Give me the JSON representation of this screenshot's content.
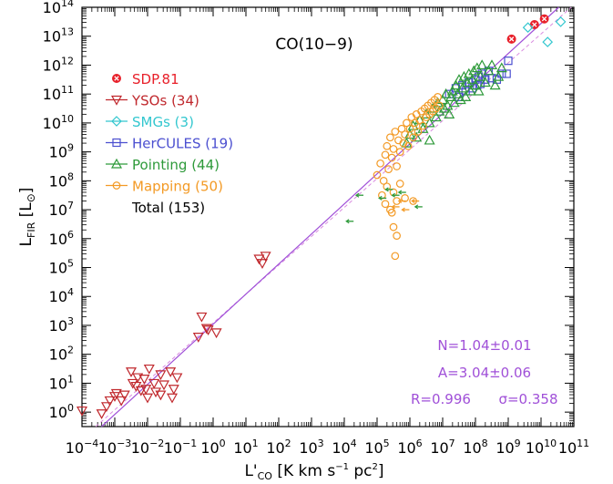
{
  "chart_data": {
    "type": "scatter",
    "title": "CO(10−9)",
    "xlabel": "L'",
    "xlabel_sub": "CO",
    "xlabel_units": "[K km s",
    "xlabel_units_sup": "−1",
    "xlabel_units_tail": " pc",
    "xlabel_units_sup2": "2",
    "xlabel_units_end": "]",
    "ylabel": "L",
    "ylabel_sub": "FIR",
    "ylabel_units": "[L",
    "ylabel_units_sym": "⊙",
    "ylabel_units_end": "]",
    "xscale": "log",
    "yscale": "log",
    "xlim": [
      -4,
      11
    ],
    "ylim": [
      -0.5,
      14
    ],
    "x_tick_exponents": [
      -4,
      -3,
      -2,
      -1,
      0,
      1,
      2,
      3,
      4,
      5,
      6,
      7,
      8,
      9,
      10,
      11
    ],
    "y_tick_exponents": [
      0,
      1,
      2,
      3,
      4,
      5,
      6,
      7,
      8,
      9,
      10,
      11,
      12,
      13,
      14
    ],
    "tick_base": "10",
    "legend_placement": "upper-left",
    "legend": [
      {
        "label": "SDP.81",
        "color": "#e8202a",
        "marker": "circled-x"
      },
      {
        "label": "YSOs (34)",
        "color": "#c0282d",
        "marker": "triangle-down"
      },
      {
        "label": "SMGs (3)",
        "color": "#33c7cf",
        "marker": "diamond"
      },
      {
        "label": "HerCULES (19)",
        "color": "#4b4fd0",
        "marker": "square"
      },
      {
        "label": "Pointing (44)",
        "color": "#2e9a3a",
        "marker": "triangle-up"
      },
      {
        "label": "Mapping (50)",
        "color": "#f39a25",
        "marker": "circle"
      }
    ],
    "total_label": "Total (153)",
    "fit": {
      "slope": 1.04,
      "intercept": 3.04,
      "color": "#a050d8"
    },
    "fit_dashed": {
      "slope": 1.0,
      "intercept": 3.08,
      "color": "#d98be0"
    },
    "stats": {
      "n_label": "N=1.04±0.01",
      "a_label": "A=3.04±0.06",
      "r_label": "R=0.996",
      "sigma_label": "σ=0.358",
      "color": "#a050d8"
    },
    "series": [
      {
        "name": "SDP.81",
        "color": "#e8202a",
        "marker": "circled-x",
        "points": [
          [
            9.1,
            12.9
          ],
          [
            9.8,
            13.4
          ],
          [
            10.1,
            13.6
          ]
        ]
      },
      {
        "name": "YSOs (34)",
        "color": "#c0282d",
        "marker": "triangle-down",
        "points": [
          [
            -4.0,
            0.05
          ],
          [
            -3.4,
            -0.05
          ],
          [
            -3.25,
            0.2
          ],
          [
            -3.15,
            0.4
          ],
          [
            -3.0,
            0.55
          ],
          [
            -2.95,
            0.65
          ],
          [
            -2.8,
            0.4
          ],
          [
            -2.7,
            0.6
          ],
          [
            -2.5,
            1.4
          ],
          [
            -2.45,
            1.0
          ],
          [
            -2.35,
            0.9
          ],
          [
            -2.3,
            1.2
          ],
          [
            -2.2,
            0.75
          ],
          [
            -2.1,
            1.15
          ],
          [
            -2.05,
            0.8
          ],
          [
            -2.0,
            0.5
          ],
          [
            -1.95,
            1.5
          ],
          [
            -1.8,
            1.0
          ],
          [
            -1.75,
            0.7
          ],
          [
            -1.6,
            1.3
          ],
          [
            -1.6,
            0.6
          ],
          [
            -1.5,
            0.95
          ],
          [
            -1.3,
            1.4
          ],
          [
            -1.25,
            0.5
          ],
          [
            -1.2,
            0.8
          ],
          [
            -1.1,
            1.2
          ],
          [
            -0.45,
            2.6
          ],
          [
            -0.35,
            3.3
          ],
          [
            -0.2,
            2.9
          ],
          [
            -0.15,
            2.85
          ],
          [
            0.1,
            2.75
          ],
          [
            1.4,
            5.3
          ],
          [
            1.5,
            5.15
          ],
          [
            1.6,
            5.4
          ]
        ]
      },
      {
        "name": "SMGs (3)",
        "color": "#33c7cf",
        "marker": "diamond",
        "points": [
          [
            9.6,
            13.3
          ],
          [
            10.2,
            12.8
          ],
          [
            10.6,
            13.5
          ]
        ]
      },
      {
        "name": "HerCULES (19)",
        "color": "#4b4fd0",
        "marker": "square",
        "points": [
          [
            7.2,
            11.0
          ],
          [
            7.4,
            11.2
          ],
          [
            7.5,
            10.9
          ],
          [
            7.6,
            11.3
          ],
          [
            7.7,
            11.1
          ],
          [
            7.8,
            11.4
          ],
          [
            7.9,
            11.2
          ],
          [
            8.0,
            11.5
          ],
          [
            8.05,
            11.3
          ],
          [
            8.1,
            11.6
          ],
          [
            8.15,
            11.35
          ],
          [
            8.2,
            11.7
          ],
          [
            8.3,
            11.5
          ],
          [
            8.4,
            11.8
          ],
          [
            8.5,
            11.55
          ],
          [
            8.65,
            11.5
          ],
          [
            8.8,
            11.7
          ],
          [
            8.95,
            11.7
          ],
          [
            9.0,
            12.15
          ]
        ]
      },
      {
        "name": "Pointing (44)",
        "color": "#2e9a3a",
        "marker": "triangle-up",
        "points": [
          [
            5.9,
            9.3
          ],
          [
            6.0,
            9.6
          ],
          [
            6.1,
            9.9
          ],
          [
            6.2,
            9.5
          ],
          [
            6.3,
            10.1
          ],
          [
            6.4,
            9.8
          ],
          [
            6.5,
            10.3
          ],
          [
            6.6,
            10.0
          ],
          [
            6.6,
            9.4
          ],
          [
            6.7,
            10.5
          ],
          [
            6.8,
            10.2
          ],
          [
            6.85,
            10.7
          ],
          [
            6.9,
            10.4
          ],
          [
            7.0,
            10.8
          ],
          [
            7.05,
            10.5
          ],
          [
            7.1,
            11.0
          ],
          [
            7.15,
            10.6
          ],
          [
            7.2,
            10.3
          ],
          [
            7.25,
            10.9
          ],
          [
            7.3,
            11.1
          ],
          [
            7.35,
            10.7
          ],
          [
            7.4,
            11.3
          ],
          [
            7.45,
            11.0
          ],
          [
            7.5,
            11.5
          ],
          [
            7.55,
            10.8
          ],
          [
            7.6,
            11.2
          ],
          [
            7.65,
            11.6
          ],
          [
            7.7,
            10.9
          ],
          [
            7.75,
            11.4
          ],
          [
            7.8,
            11.7
          ],
          [
            7.85,
            11.1
          ],
          [
            7.9,
            11.5
          ],
          [
            7.95,
            11.8
          ],
          [
            8.0,
            11.3
          ],
          [
            8.05,
            11.9
          ],
          [
            8.1,
            11.1
          ],
          [
            8.15,
            11.6
          ],
          [
            8.2,
            12.0
          ],
          [
            8.3,
            11.4
          ],
          [
            8.4,
            11.8
          ],
          [
            8.5,
            12.0
          ],
          [
            8.6,
            11.3
          ],
          [
            8.7,
            11.6
          ],
          [
            8.8,
            11.9
          ]
        ]
      },
      {
        "name": "Mapping (50)",
        "color": "#f39a25",
        "marker": "circle",
        "points": [
          [
            5.0,
            8.2
          ],
          [
            5.1,
            8.6
          ],
          [
            5.2,
            8.0
          ],
          [
            5.25,
            8.9
          ],
          [
            5.3,
            9.2
          ],
          [
            5.35,
            8.4
          ],
          [
            5.4,
            9.5
          ],
          [
            5.45,
            8.8
          ],
          [
            5.5,
            9.1
          ],
          [
            5.55,
            9.7
          ],
          [
            5.6,
            8.5
          ],
          [
            5.65,
            9.4
          ],
          [
            5.7,
            9.0
          ],
          [
            5.75,
            9.8
          ],
          [
            5.8,
            9.3
          ],
          [
            5.85,
            9.6
          ],
          [
            5.9,
            10.0
          ],
          [
            5.95,
            9.2
          ],
          [
            6.0,
            9.8
          ],
          [
            6.05,
            10.2
          ],
          [
            6.1,
            9.5
          ],
          [
            6.15,
            10.0
          ],
          [
            6.2,
            10.3
          ],
          [
            6.25,
            9.7
          ],
          [
            6.3,
            10.1
          ],
          [
            6.35,
            10.4
          ],
          [
            6.4,
            9.9
          ],
          [
            6.45,
            10.5
          ],
          [
            6.5,
            10.2
          ],
          [
            6.55,
            10.6
          ],
          [
            6.6,
            10.3
          ],
          [
            6.65,
            10.7
          ],
          [
            6.7,
            10.4
          ],
          [
            6.75,
            10.8
          ],
          [
            6.8,
            10.5
          ],
          [
            6.85,
            10.9
          ],
          [
            6.9,
            10.6
          ],
          [
            5.15,
            7.5
          ],
          [
            5.3,
            7.8
          ],
          [
            5.5,
            7.6
          ],
          [
            5.7,
            7.9
          ],
          [
            5.85,
            7.4
          ],
          [
            5.25,
            7.2
          ],
          [
            5.4,
            7.0
          ],
          [
            5.6,
            7.3
          ],
          [
            5.45,
            6.9
          ],
          [
            5.5,
            6.4
          ],
          [
            5.6,
            6.1
          ],
          [
            5.55,
            5.4
          ],
          [
            6.1,
            7.3
          ]
        ]
      },
      {
        "name": "Upper limits",
        "color": "#2e9a3a",
        "marker": "left-arrow",
        "points": [
          [
            4.2,
            6.6
          ],
          [
            4.5,
            7.5
          ],
          [
            5.2,
            7.4
          ],
          [
            5.4,
            7.7
          ],
          [
            5.6,
            7.5
          ],
          [
            5.8,
            7.6
          ],
          [
            6.3,
            7.1
          ]
        ]
      },
      {
        "name": "Upper limits Mapping",
        "color": "#f39a25",
        "marker": "left-arrow",
        "points": [
          [
            5.6,
            7.1
          ],
          [
            5.8,
            7.3
          ],
          [
            5.9,
            7.0
          ],
          [
            6.2,
            7.3
          ]
        ]
      }
    ]
  }
}
